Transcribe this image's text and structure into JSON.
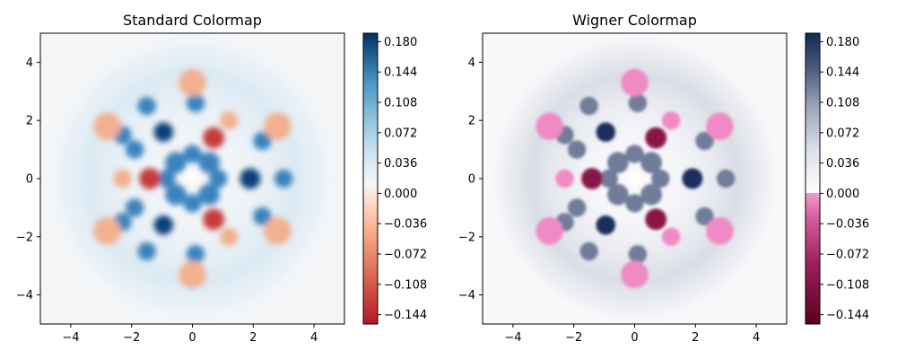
{
  "chart_data": [
    {
      "type": "heatmap",
      "title": "Standard Colormap",
      "colormap": "RdBu",
      "xlim": [
        -5,
        5
      ],
      "ylim": [
        -5,
        5
      ],
      "xticks": [
        -4,
        -2,
        0,
        2,
        4
      ],
      "yticks": [
        -4,
        -2,
        0,
        2,
        4
      ],
      "colorbar": {
        "range": [
          -0.155,
          0.19
        ],
        "ticks": [
          -0.144,
          -0.108,
          -0.072,
          -0.036,
          0.0,
          0.036,
          0.072,
          0.108,
          0.144,
          0.18
        ],
        "tick_labels": [
          "−0.144",
          "−0.108",
          "−0.072",
          "−0.036",
          "0.000",
          "0.036",
          "0.072",
          "0.108",
          "0.144",
          "0.180"
        ]
      },
      "grid": false
    },
    {
      "type": "heatmap",
      "title": "Wigner Colormap",
      "colormap": "wigner",
      "xlim": [
        -5,
        5
      ],
      "ylim": [
        -5,
        5
      ],
      "xticks": [
        -4,
        -2,
        0,
        2,
        4
      ],
      "yticks": [
        -4,
        -2,
        0,
        2,
        4
      ],
      "colorbar": {
        "range": [
          -0.155,
          0.19
        ],
        "ticks": [
          -0.144,
          -0.108,
          -0.072,
          -0.036,
          0.0,
          0.036,
          0.072,
          0.108,
          0.144,
          0.18
        ],
        "tick_labels": [
          "−0.144",
          "−0.108",
          "−0.072",
          "−0.036",
          "0.000",
          "0.036",
          "0.072",
          "0.108",
          "0.144",
          "0.180"
        ]
      },
      "grid": false
    }
  ]
}
